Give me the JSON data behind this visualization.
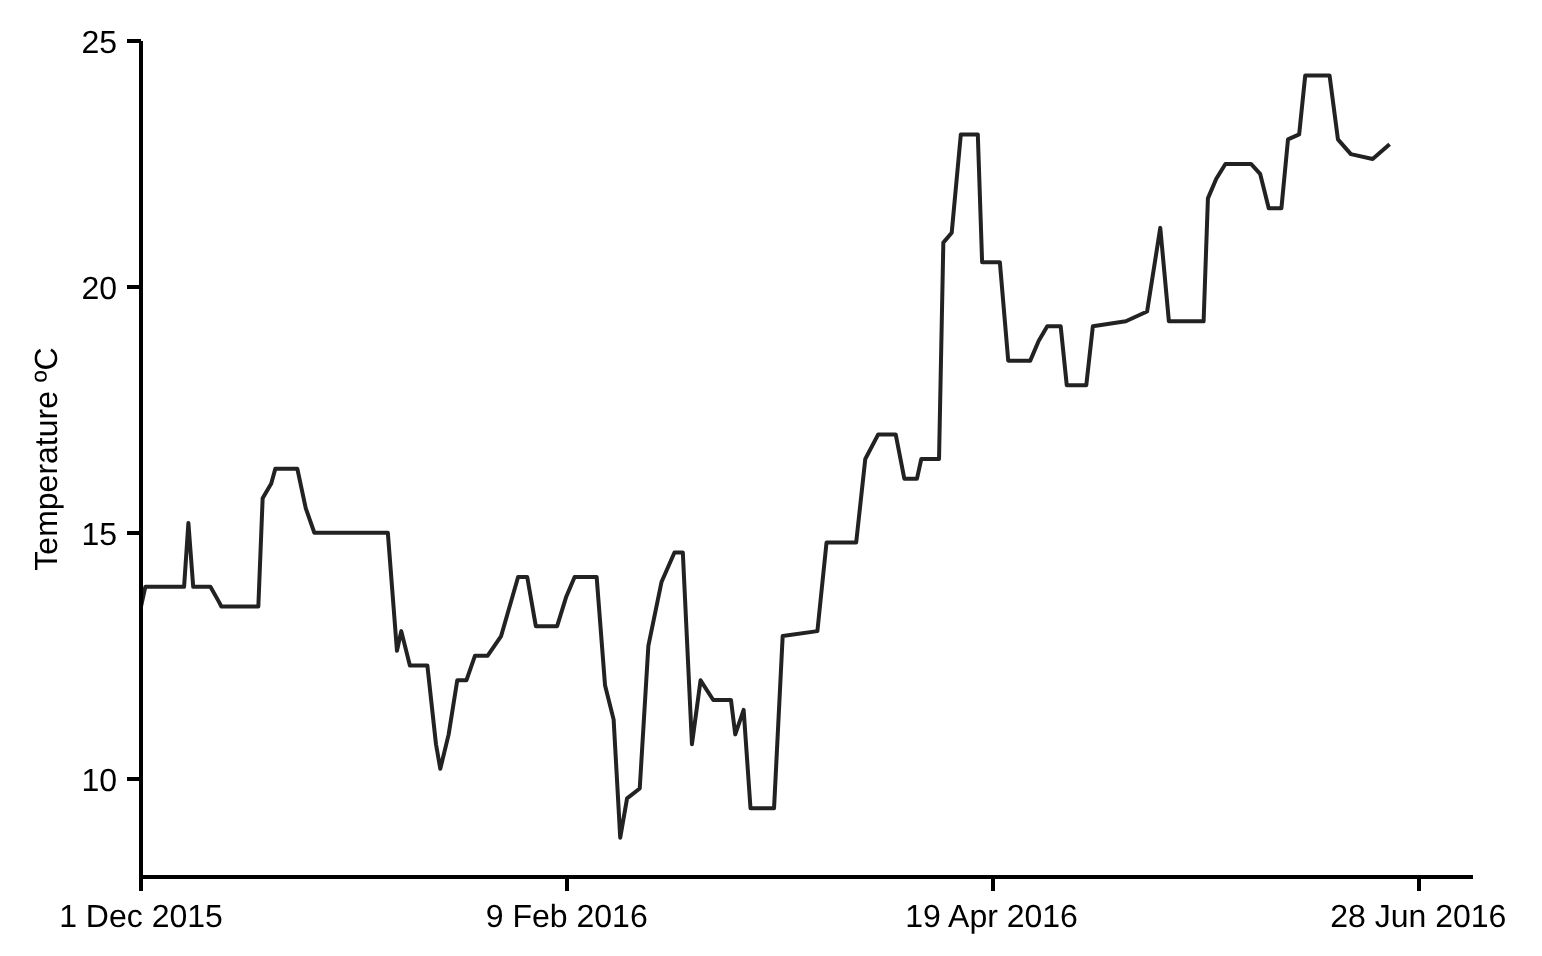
{
  "chart_data": {
    "type": "line",
    "ylabel": "Temperature ºC",
    "x": [
      "2015-12-01T00:00",
      "2015-12-01T17:00",
      "2015-12-08T02:00",
      "2015-12-08T19:00",
      "2015-12-09T14:00",
      "2015-12-12T10:00",
      "2015-12-13T19:00",
      "2015-12-14T05:00",
      "2015-12-20T07:00",
      "2015-12-21T00:00",
      "2015-12-22T10:00",
      "2015-12-23T02:00",
      "2015-12-26T17:00",
      "2015-12-28T02:00",
      "2015-12-29T12:00",
      "2016-01-10T14:00",
      "2016-01-12T02:00",
      "2016-01-12T19:00",
      "2016-01-14T05:00",
      "2016-01-17T02:00",
      "2016-01-18T12:00",
      "2016-01-19T05:00",
      "2016-01-20T14:00",
      "2016-01-22T00:00",
      "2016-01-23T12:00",
      "2016-01-24T22:00",
      "2016-01-27T00:00",
      "2016-01-29T05:00",
      "2016-02-01T00:00",
      "2016-02-02T12:00",
      "2016-02-03T22:00",
      "2016-02-07T10:00",
      "2016-02-08T22:00",
      "2016-02-10T07:00",
      "2016-02-13T22:00",
      "2016-02-15T07:00",
      "2016-02-16T17:00",
      "2016-02-17T19:00",
      "2016-02-18T22:00",
      "2016-02-21T00:00",
      "2016-02-22T10:00",
      "2016-02-24T14:00",
      "2016-02-26T17:00",
      "2016-02-28T02:00",
      "2016-02-29T14:00",
      "2016-03-02T00:00",
      "2016-03-04T02:00",
      "2016-03-07T00:00",
      "2016-03-07T17:00",
      "2016-03-09T02:00",
      "2016-03-10T05:00",
      "2016-03-14T02:00",
      "2016-03-15T12:00",
      "2016-03-21T05:00",
      "2016-03-22T17:00",
      "2016-03-27T14:00",
      "2016-03-29T02:00",
      "2016-03-31T05:00",
      "2016-04-03T02:00",
      "2016-04-04T12:00",
      "2016-04-06T14:00",
      "2016-04-07T07:00",
      "2016-04-10T05:00",
      "2016-04-10T22:00",
      "2016-04-12T07:00",
      "2016-04-13T19:00",
      "2016-04-16T14:00",
      "2016-04-17T07:00",
      "2016-04-20T05:00",
      "2016-04-21T14:00",
      "2016-04-25T05:00",
      "2016-04-26T14:00",
      "2016-04-28T00:00",
      "2016-04-30T05:00",
      "2016-05-01T05:00",
      "2016-05-04T10:00",
      "2016-05-05T12:00",
      "2016-05-10T22:00",
      "2016-05-14T10:00",
      "2016-05-16T14:00",
      "2016-05-18T00:00",
      "2016-05-23T17:00",
      "2016-05-24T10:00",
      "2016-05-25T19:00",
      "2016-05-27T07:00",
      "2016-05-31T12:00",
      "2016-06-02T00:00",
      "2016-06-03T10:00",
      "2016-06-05T12:00",
      "2016-06-06T14:00",
      "2016-06-08T10:00",
      "2016-06-09T10:00",
      "2016-06-13T10:00",
      "2016-06-14T19:00",
      "2016-06-16T22:00",
      "2016-06-20T12:00",
      "2016-06-23T07:00"
    ],
    "series": [
      {
        "color": "#222222",
        "values": [
          13.5,
          13.9,
          13.9,
          15.2,
          13.9,
          13.9,
          13.6,
          13.5,
          13.5,
          15.7,
          16.0,
          16.3,
          16.3,
          15.5,
          15.0,
          15.0,
          12.6,
          13.0,
          12.3,
          12.3,
          10.7,
          10.2,
          10.9,
          12.0,
          12.0,
          12.5,
          12.5,
          12.9,
          14.1,
          14.1,
          13.1,
          13.1,
          13.7,
          14.1,
          14.1,
          11.9,
          11.2,
          8.8,
          9.6,
          9.8,
          12.7,
          14.0,
          14.6,
          14.6,
          10.7,
          12.0,
          11.6,
          11.6,
          10.9,
          11.4,
          9.4,
          9.4,
          12.9,
          13.0,
          14.8,
          14.8,
          16.5,
          17.0,
          17.0,
          16.1,
          16.1,
          16.5,
          16.5,
          20.9,
          21.1,
          23.1,
          23.1,
          20.5,
          20.5,
          18.5,
          18.5,
          18.9,
          19.2,
          19.2,
          18.0,
          18.0,
          19.2,
          19.3,
          19.5,
          21.2,
          19.3,
          19.3,
          21.8,
          22.2,
          22.5,
          22.5,
          22.3,
          21.6,
          21.6,
          23.0,
          23.1,
          24.3,
          24.3,
          23.0,
          22.7,
          22.6,
          22.9
        ]
      }
    ],
    "xlim": [
      "2015-12-01",
      "2016-07-07"
    ],
    "xticks": [
      {
        "value": "2015-12-01",
        "label": "1 Dec 2015"
      },
      {
        "value": "2016-02-09",
        "label": "9 Feb 2016"
      },
      {
        "value": "2016-04-19",
        "label": "19 Apr 2016"
      },
      {
        "value": "2016-06-28",
        "label": "28 Jun 2016"
      }
    ],
    "ylim": [
      8,
      25
    ],
    "yticks": [
      10,
      15,
      20,
      25
    ],
    "grid": false,
    "marker": "none",
    "line_style": "solid"
  }
}
